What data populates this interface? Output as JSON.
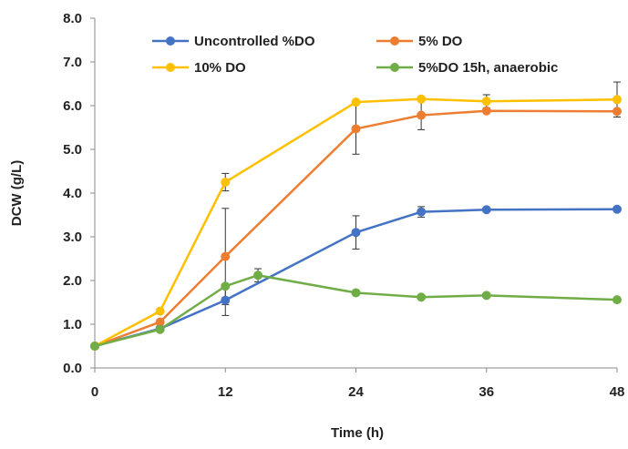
{
  "chart_data": {
    "type": "line",
    "xlabel": "Time (h)",
    "ylabel": "DCW (g/L)",
    "xlim": [
      0,
      48
    ],
    "ylim": [
      0,
      8
    ],
    "xticks": [
      0,
      12,
      24,
      36,
      48
    ],
    "yticks": [
      0,
      1,
      2,
      3,
      4,
      5,
      6,
      7,
      8
    ],
    "ytick_labels": [
      "0.0",
      "1.0",
      "2.0",
      "3.0",
      "4.0",
      "5.0",
      "6.0",
      "7.0",
      "8.0"
    ],
    "grid": false,
    "legend_position": "top",
    "series": [
      {
        "name": "Uncontrolled %DO",
        "color": "#4472C4",
        "points": [
          {
            "x": 0,
            "y": 0.5
          },
          {
            "x": 6,
            "y": 0.9
          },
          {
            "x": 12,
            "y": 1.55,
            "err": 0.35
          },
          {
            "x": 24,
            "y": 3.1,
            "err": 0.38
          },
          {
            "x": 30,
            "y": 3.57,
            "err": 0.12
          },
          {
            "x": 36,
            "y": 3.62
          },
          {
            "x": 48,
            "y": 3.63
          }
        ]
      },
      {
        "name": "5% DO",
        "color": "#ED7D31",
        "points": [
          {
            "x": 0,
            "y": 0.5
          },
          {
            "x": 6,
            "y": 1.05
          },
          {
            "x": 12,
            "y": 2.55,
            "err": 1.1
          },
          {
            "x": 24,
            "y": 5.47,
            "err": 0.58
          },
          {
            "x": 30,
            "y": 5.78,
            "err": 0.33
          },
          {
            "x": 36,
            "y": 5.88
          },
          {
            "x": 48,
            "y": 5.87
          }
        ]
      },
      {
        "name": "10% DO",
        "color": "#FFC000",
        "points": [
          {
            "x": 0,
            "y": 0.5
          },
          {
            "x": 6,
            "y": 1.3
          },
          {
            "x": 12,
            "y": 4.25,
            "err": 0.2
          },
          {
            "x": 24,
            "y": 6.08
          },
          {
            "x": 30,
            "y": 6.15
          },
          {
            "x": 36,
            "y": 6.1,
            "err": 0.15
          },
          {
            "x": 48,
            "y": 6.14,
            "err": 0.4
          }
        ]
      },
      {
        "name": "5%DO 15h, anaerobic",
        "color": "#70AD47",
        "points": [
          {
            "x": 0,
            "y": 0.5
          },
          {
            "x": 6,
            "y": 0.88
          },
          {
            "x": 12,
            "y": 1.87
          },
          {
            "x": 15,
            "y": 2.12,
            "err": 0.15
          },
          {
            "x": 24,
            "y": 1.72
          },
          {
            "x": 30,
            "y": 1.62
          },
          {
            "x": 36,
            "y": 1.66
          },
          {
            "x": 48,
            "y": 1.56
          }
        ]
      }
    ]
  }
}
